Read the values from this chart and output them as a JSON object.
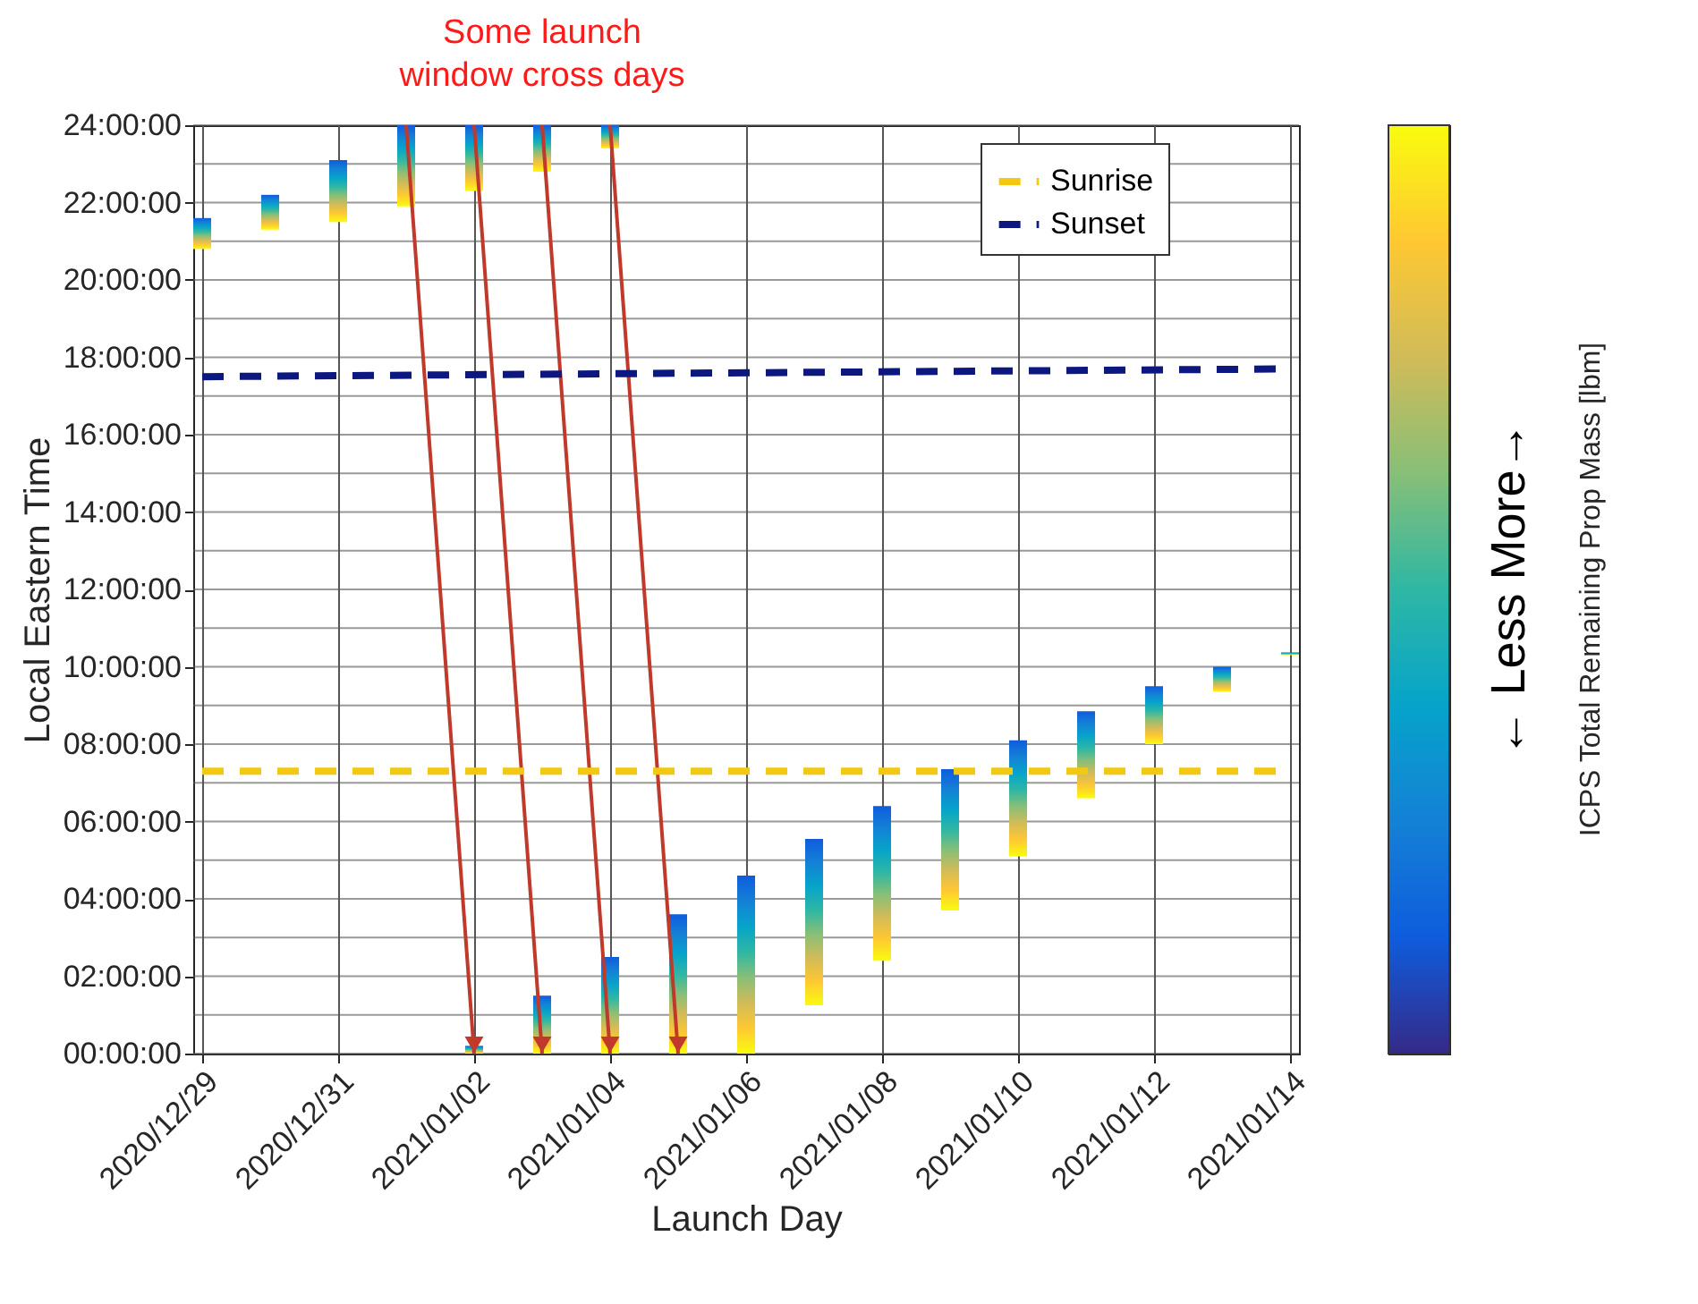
{
  "chart_data": {
    "type": "bar",
    "xlabel": "Launch Day",
    "ylabel": "Local Eastern Time",
    "clabel": "ICPS Total Remaining Prop Mass [lbm]",
    "annotations": [
      "Some launch\nwindow cross days",
      "← Less   More→"
    ],
    "xlim": [
      "2020-12-29",
      "2021-01-14"
    ],
    "xticks": [
      {
        "value": "2020-12-29",
        "label": "2020/12/29"
      },
      {
        "value": "2020-12-31",
        "label": "2020/12/31"
      },
      {
        "value": "2021-01-02",
        "label": "2021/01/02"
      },
      {
        "value": "2021-01-04",
        "label": "2021/01/04"
      },
      {
        "value": "2021-01-06",
        "label": "2021/01/06"
      },
      {
        "value": "2021-01-08",
        "label": "2021/01/08"
      },
      {
        "value": "2021-01-10",
        "label": "2021/01/10"
      },
      {
        "value": "2021-01-12",
        "label": "2021/01/12"
      },
      {
        "value": "2021-01-14",
        "label": "2021/01/14"
      }
    ],
    "ylim": [
      0,
      24
    ],
    "yticks": [
      {
        "value": 0,
        "label": "00:00:00"
      },
      {
        "value": 1,
        "label": null
      },
      {
        "value": 2,
        "label": "02:00:00"
      },
      {
        "value": 3,
        "label": null
      },
      {
        "value": 4,
        "label": "04:00:00"
      },
      {
        "value": 5,
        "label": null
      },
      {
        "value": 6,
        "label": "06:00:00"
      },
      {
        "value": 7,
        "label": null
      },
      {
        "value": 8,
        "label": "08:00:00"
      },
      {
        "value": 9,
        "label": null
      },
      {
        "value": 10,
        "label": "10:00:00"
      },
      {
        "value": 11,
        "label": null
      },
      {
        "value": 12,
        "label": "12:00:00"
      },
      {
        "value": 13,
        "label": null
      },
      {
        "value": 14,
        "label": "14:00:00"
      },
      {
        "value": 15,
        "label": null
      },
      {
        "value": 16,
        "label": "16:00:00"
      },
      {
        "value": 17,
        "label": null
      },
      {
        "value": 18,
        "label": "18:00:00"
      },
      {
        "value": 19,
        "label": null
      },
      {
        "value": 20,
        "label": "20:00:00"
      },
      {
        "value": 21,
        "label": null
      },
      {
        "value": 22,
        "label": "22:00:00"
      },
      {
        "value": 23,
        "label": null
      },
      {
        "value": 24,
        "label": "24:00:00"
      }
    ],
    "grid": true,
    "legend": "top right",
    "series": [
      {
        "x": [
          "2020-12-29",
          "2020-12-30",
          "2020-12-31",
          "2021-01-01",
          "2021-01-02",
          "2021-01-03",
          "2021-01-04"
        ],
        "base": [
          20.8,
          21.3,
          21.5,
          21.9,
          22.3,
          22.8,
          23.4
        ],
        "values": [
          0.8,
          0.9,
          1.6,
          2.1,
          1.7,
          1.2,
          0.6
        ]
      },
      {
        "x": [
          "2021-01-02",
          "2021-01-03",
          "2021-01-04",
          "2021-01-05",
          "2021-01-06",
          "2021-01-07",
          "2021-01-08",
          "2021-01-09",
          "2021-01-10",
          "2021-01-11",
          "2021-01-12",
          "2021-01-13",
          "2021-01-14"
        ],
        "base": [
          0,
          0,
          0,
          0,
          0,
          1.25,
          2.4,
          3.7,
          5.1,
          6.6,
          8.0,
          9.35,
          10.3
        ],
        "values": [
          0.2,
          1.5,
          2.5,
          3.6,
          4.6,
          4.3,
          4.0,
          3.65,
          3.0,
          2.25,
          1.5,
          0.65,
          0.07
        ]
      },
      {
        "type": "line",
        "name": "Sunrise",
        "color": "#f2c811",
        "line_style": "dashed",
        "x": [
          "2020-12-29",
          "2021-01-14"
        ],
        "values": [
          7.3,
          7.3
        ]
      },
      {
        "type": "line",
        "name": "Sunset",
        "color": "#0c1780",
        "line_style": "dashed",
        "x": [
          "2020-12-29",
          "2021-01-14"
        ],
        "values": [
          17.5,
          17.7
        ]
      }
    ]
  }
}
